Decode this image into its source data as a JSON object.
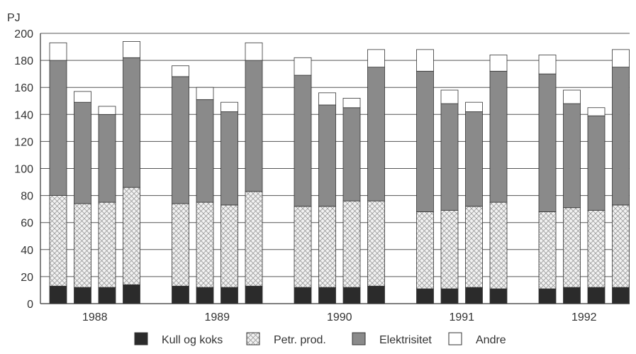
{
  "chart_data": {
    "type": "bar",
    "stacked": true,
    "ylabel": "PJ",
    "ylim": [
      0,
      200
    ],
    "yticks": [
      0,
      20,
      40,
      60,
      80,
      100,
      120,
      140,
      160,
      180,
      200
    ],
    "grid": true,
    "legend_position": "bottom",
    "years": [
      "1988",
      "1989",
      "1990",
      "1991",
      "1992"
    ],
    "bars_per_year": 4,
    "series": [
      {
        "name": "Kull og koks",
        "color": "#2b2b2b",
        "pattern": "solid",
        "values": [
          13,
          12,
          12,
          14,
          13,
          12,
          12,
          13,
          12,
          12,
          12,
          13,
          11,
          11,
          12,
          11,
          11,
          12,
          12,
          12
        ]
      },
      {
        "name": "Petr. prod.",
        "color": "#e6e6e6",
        "pattern": "crosshatch",
        "values": [
          67,
          62,
          63,
          72,
          61,
          63,
          61,
          70,
          60,
          60,
          64,
          63,
          57,
          58,
          60,
          64,
          57,
          59,
          57,
          61
        ]
      },
      {
        "name": "Elektrisitet",
        "color": "#8a8a8a",
        "pattern": "solid",
        "values": [
          100,
          75,
          65,
          96,
          94,
          76,
          69,
          97,
          97,
          75,
          69,
          99,
          104,
          79,
          70,
          97,
          102,
          77,
          70,
          102
        ]
      },
      {
        "name": "Andre",
        "color": "#ffffff",
        "pattern": "empty",
        "values": [
          13,
          8,
          6,
          12,
          8,
          9,
          7,
          13,
          13,
          9,
          7,
          13,
          16,
          10,
          7,
          12,
          14,
          10,
          6,
          13
        ]
      }
    ]
  }
}
